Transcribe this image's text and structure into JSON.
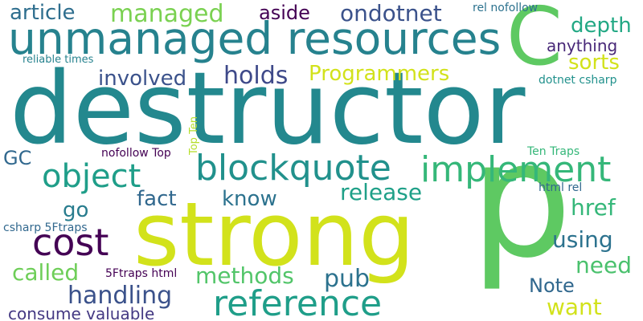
{
  "background": "#ffffff",
  "words": [
    {
      "id": "destructor",
      "text": "destructor",
      "color": "#23888e"
    },
    {
      "id": "strong",
      "text": "strong",
      "color": "#d2e21b"
    },
    {
      "id": "p",
      "text": "p",
      "color": "#5ec962"
    },
    {
      "id": "unmanaged-resources",
      "text": "unmanaged resources",
      "color": "#26828e"
    },
    {
      "id": "c",
      "text": "C",
      "color": "#5ec962"
    },
    {
      "id": "blockquote",
      "text": "blockquote",
      "color": "#21918c"
    },
    {
      "id": "implement",
      "text": "implement",
      "color": "#35b779"
    },
    {
      "id": "object",
      "text": "object",
      "color": "#1f9e89"
    },
    {
      "id": "cost",
      "text": "cost",
      "color": "#440154"
    },
    {
      "id": "reference",
      "text": "reference",
      "color": "#1f9e89"
    },
    {
      "id": "managed",
      "text": "managed",
      "color": "#7ad151"
    },
    {
      "id": "article",
      "text": "article",
      "color": "#2e6e8e"
    },
    {
      "id": "aside",
      "text": "aside",
      "color": "#440154"
    },
    {
      "id": "ondotnet",
      "text": "ondotnet",
      "color": "#3b528b"
    },
    {
      "id": "depth",
      "text": "depth",
      "color": "#22a884"
    },
    {
      "id": "sorts",
      "text": "sorts",
      "color": "#d2e21b"
    },
    {
      "id": "anything",
      "text": "anything",
      "color": "#482878"
    },
    {
      "id": "holds",
      "text": "holds",
      "color": "#3e4989"
    },
    {
      "id": "programmers",
      "text": "Programmers",
      "color": "#d2e21b"
    },
    {
      "id": "involved",
      "text": "involved",
      "color": "#3b528b"
    },
    {
      "id": "gc",
      "text": "GC",
      "color": "#31688e"
    },
    {
      "id": "release",
      "text": "release",
      "color": "#1fa088"
    },
    {
      "id": "fact",
      "text": "fact",
      "color": "#31688e"
    },
    {
      "id": "know",
      "text": "know",
      "color": "#2c728e"
    },
    {
      "id": "go",
      "text": "go",
      "color": "#287c8e"
    },
    {
      "id": "href",
      "text": "href",
      "color": "#35b779"
    },
    {
      "id": "using",
      "text": "using",
      "color": "#2c728e"
    },
    {
      "id": "need",
      "text": "need",
      "color": "#4ac16d"
    },
    {
      "id": "called",
      "text": "called",
      "color": "#6ece58"
    },
    {
      "id": "methods",
      "text": "methods",
      "color": "#52c569"
    },
    {
      "id": "handling",
      "text": "handling",
      "color": "#3b528b"
    },
    {
      "id": "pub",
      "text": "pub",
      "color": "#2c728e"
    },
    {
      "id": "note",
      "text": "Note",
      "color": "#31688e"
    },
    {
      "id": "want",
      "text": "want",
      "color": "#d2e21b"
    },
    {
      "id": "consume-valuable",
      "text": "consume valuable",
      "color": "#443983"
    },
    {
      "id": "rel-nofollow",
      "text": "rel nofollow",
      "color": "#2c728e"
    },
    {
      "id": "reliable-times",
      "text": "reliable times",
      "color": "#26828e"
    },
    {
      "id": "dotnet-csharp",
      "text": "dotnet csharp",
      "color": "#21918c"
    },
    {
      "id": "top-ten",
      "text": "Top Ten",
      "color": "#b5de2b"
    },
    {
      "id": "nofollow-top",
      "text": "nofollow Top",
      "color": "#440154"
    },
    {
      "id": "ten-traps",
      "text": "Ten Traps",
      "color": "#35b779"
    },
    {
      "id": "html-rel",
      "text": "html rel",
      "color": "#31688e"
    },
    {
      "id": "csharp-5ftraps",
      "text": "csharp 5Ftraps",
      "color": "#31688e"
    },
    {
      "id": "5ftraps-html",
      "text": "5Ftraps html",
      "color": "#440154"
    }
  ]
}
